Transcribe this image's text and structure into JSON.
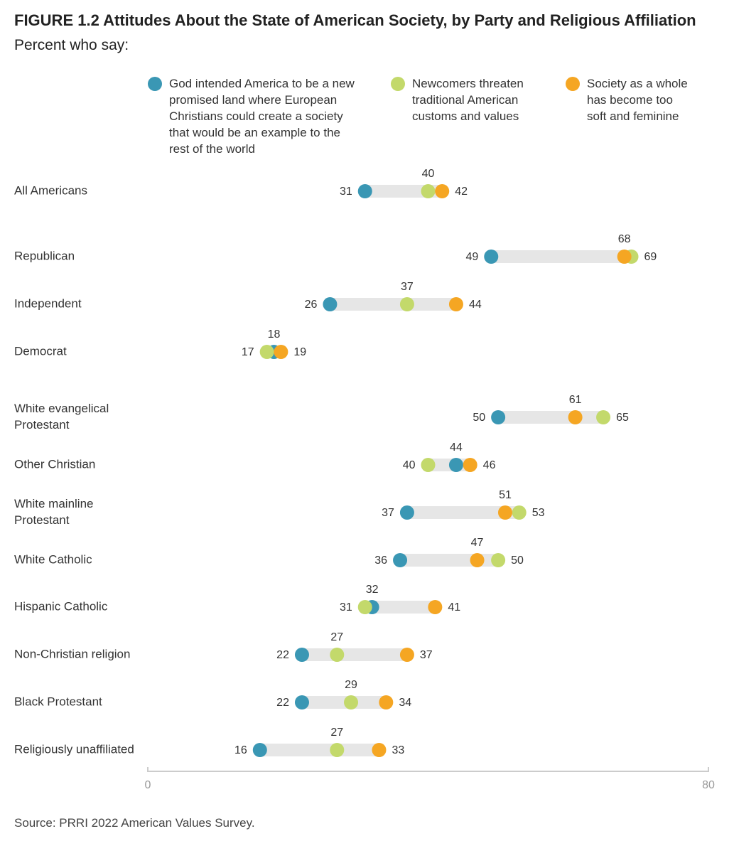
{
  "header": {
    "title": "FIGURE 1.2  Attitudes About the State of American Society, by Party and Religious Affiliation",
    "subtitle": "Percent who say:"
  },
  "legend": {
    "items": [
      {
        "label": "God intended America to be a new promised land where European Christians could create a society that would be an example to the rest of the world",
        "lines": [
          "God intended America to be a new",
          "promised land where European",
          "Christians could create a society",
          "that would be an example to the",
          "rest of the world"
        ],
        "color": "#3a97b4"
      },
      {
        "label": "Newcomers threaten traditional American customs and values",
        "lines": [
          "Newcomers threaten",
          "traditional American",
          "customs and values"
        ],
        "color": "#c3d96b"
      },
      {
        "label": "Society as a whole has become too soft and feminine",
        "lines": [
          "Society as a whole",
          "has become too",
          "soft and feminine"
        ],
        "color": "#f5a623"
      }
    ]
  },
  "chart_data": {
    "type": "dot",
    "xlim": [
      0,
      80
    ],
    "tick_labels": [
      "0",
      "80"
    ],
    "series": [
      {
        "name": "God intended America to be a new promised land where European Christians could create a society that would be an example to the rest of the world",
        "color": "#3a97b4"
      },
      {
        "name": "Newcomers threaten traditional American customs and values",
        "color": "#c3d96b"
      },
      {
        "name": "Society as a whole has become too soft and feminine",
        "color": "#f5a623"
      }
    ],
    "categories": [
      {
        "label": "All Americans",
        "lines": [
          "All Americans"
        ],
        "values": [
          31,
          40,
          42
        ]
      },
      {
        "label": "Republican",
        "lines": [
          "Republican"
        ],
        "values": [
          49,
          69,
          68
        ]
      },
      {
        "label": "Independent",
        "lines": [
          "Independent"
        ],
        "values": [
          26,
          37,
          44
        ]
      },
      {
        "label": "Democrat",
        "lines": [
          "Democrat"
        ],
        "values": [
          18,
          17,
          19
        ]
      },
      {
        "label": "White evangelical Protestant",
        "lines": [
          "White evangelical",
          "Protestant"
        ],
        "values": [
          50,
          65,
          61
        ]
      },
      {
        "label": "Other Christian",
        "lines": [
          "Other Christian"
        ],
        "values": [
          44,
          40,
          46
        ]
      },
      {
        "label": "White mainline Protestant",
        "lines": [
          "White mainline",
          "Protestant"
        ],
        "values": [
          37,
          53,
          51
        ]
      },
      {
        "label": "White Catholic",
        "lines": [
          "White Catholic"
        ],
        "values": [
          36,
          50,
          47
        ]
      },
      {
        "label": "Hispanic Catholic",
        "lines": [
          "Hispanic Catholic"
        ],
        "values": [
          32,
          31,
          41
        ]
      },
      {
        "label": "Non-Christian religion",
        "lines": [
          "Non-Christian religion"
        ],
        "values": [
          22,
          27,
          37
        ]
      },
      {
        "label": "Black Protestant",
        "lines": [
          "Black Protestant"
        ],
        "values": [
          22,
          29,
          34
        ]
      },
      {
        "label": "Religiously unaffiliated",
        "lines": [
          "Religiously unaffiliated"
        ],
        "values": [
          16,
          27,
          33
        ]
      }
    ]
  },
  "footer": {
    "source": "Source: PRRI 2022 American Values Survey."
  }
}
